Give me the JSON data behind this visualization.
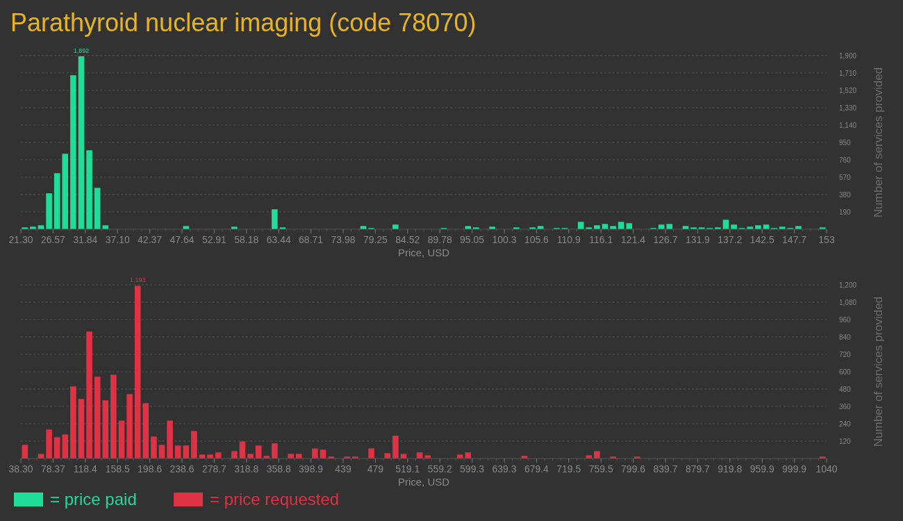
{
  "chart_data": [
    {
      "type": "histogram",
      "title": "Parathyroid nuclear imaging (code 78070)",
      "xlabel": "Price, USD",
      "ylabel": "Number of services provided",
      "grid": "y",
      "legend": "bottom left",
      "bins": [
        21.3,
        22.617,
        23.934,
        25.251,
        26.568,
        27.885,
        29.202,
        30.519,
        31.836,
        33.153,
        34.47,
        35.787,
        37.104,
        38.421,
        39.738,
        41.055,
        42.372,
        43.689,
        45.006,
        46.323,
        47.64,
        48.957,
        50.274,
        51.591,
        52.908,
        54.225,
        55.542,
        56.859,
        58.176,
        59.493,
        60.81,
        62.127,
        63.444,
        64.761,
        66.078,
        67.395,
        68.712,
        70.029,
        71.346,
        72.663,
        73.98,
        75.297,
        76.614,
        77.931,
        79.248,
        80.565,
        81.882,
        83.199,
        84.516,
        85.833,
        87.15,
        88.467,
        89.784,
        91.101,
        92.418,
        93.735,
        95.052,
        96.369,
        97.686,
        99.003,
        100.32,
        101.637,
        102.954,
        104.271,
        105.588,
        106.905,
        108.222,
        109.539,
        110.856,
        112.173,
        113.49,
        114.807,
        116.124,
        117.441,
        118.758,
        120.075,
        121.392,
        122.709,
        124.026,
        125.343,
        126.66,
        127.977,
        129.294,
        130.611,
        131.928,
        133.245,
        134.562,
        135.879,
        137.196,
        138.513,
        139.83,
        141.147,
        142.464,
        143.781,
        145.098,
        146.415,
        147.732,
        149.049,
        150.366,
        151.683,
        153
      ],
      "xticks": [
        {
          "value": 21.3,
          "label": "21.30"
        },
        {
          "value": 26.568,
          "label": "26.57"
        },
        {
          "value": 31.836,
          "label": "31.84"
        },
        {
          "value": 37.104,
          "label": "37.10"
        },
        {
          "value": 42.372,
          "label": "42.37"
        },
        47.64,
        {
          "value": 52.908,
          "label": "52.91"
        },
        {
          "value": 58.176,
          "label": "58.18"
        },
        {
          "value": 63.444,
          "label": "63.44"
        },
        {
          "value": 68.712,
          "label": "68.71"
        },
        73.98,
        {
          "value": 79.248,
          "label": "79.25"
        },
        {
          "value": 84.516,
          "label": "84.52"
        },
        {
          "value": 89.784,
          "label": "89.78"
        },
        {
          "value": 95.052,
          "label": "95.05"
        },
        {
          "value": 100.32,
          "label": "100.3"
        },
        {
          "value": 105.588,
          "label": "105.6"
        },
        {
          "value": 110.856,
          "label": "110.9"
        },
        {
          "value": 116.124,
          "label": "116.1"
        },
        {
          "value": 121.392,
          "label": "121.4"
        },
        {
          "value": 126.66,
          "label": "126.7"
        },
        {
          "value": 131.928,
          "label": "131.9"
        },
        {
          "value": 137.196,
          "label": "137.2"
        },
        {
          "value": 142.464,
          "label": "142.5"
        },
        {
          "value": 147.732,
          "label": "147.7"
        },
        153
      ],
      "xlim": [
        21.3,
        153
      ],
      "ylim": [
        0,
        1900
      ],
      "yticks": [
        190,
        380,
        570,
        760,
        950,
        {
          "value": 1140,
          "label": "1,140"
        },
        {
          "value": 1330,
          "label": "1,330"
        },
        {
          "value": 1520,
          "label": "1,520"
        },
        {
          "value": 1710,
          "label": "1,710"
        },
        {
          "value": 1900,
          "label": "1,900"
        }
      ],
      "series": [
        {
          "name": "= price paid",
          "color": "#20dc9a",
          "values": [
            20,
            28,
            43,
            393,
            613,
            826,
            1685,
            1892,
            864,
            453,
            43,
            0,
            0,
            0,
            0,
            0,
            0,
            0,
            0,
            0,
            35,
            0,
            0,
            0,
            0,
            0,
            28,
            0,
            0,
            0,
            0,
            218,
            20,
            0,
            0,
            0,
            0,
            0,
            0,
            0,
            0,
            0,
            35,
            13,
            0,
            0,
            51,
            0,
            0,
            0,
            0,
            0,
            13,
            0,
            0,
            35,
            20,
            0,
            28,
            0,
            0,
            20,
            0,
            20,
            35,
            0,
            13,
            13,
            0,
            81,
            20,
            43,
            58,
            35,
            81,
            66,
            0,
            0,
            13,
            51,
            58,
            0,
            35,
            20,
            20,
            13,
            20,
            104,
            51,
            13,
            28,
            43,
            51,
            13,
            28,
            13,
            35,
            0,
            0,
            20
          ],
          "value_labels": [
            null,
            null,
            null,
            null,
            null,
            null,
            null,
            "1,892",
            null,
            null,
            null,
            null,
            null,
            null,
            null,
            null,
            null,
            null,
            null,
            null,
            null,
            null,
            null,
            null,
            null,
            null,
            null,
            null,
            null,
            null,
            null,
            null,
            null,
            null,
            null,
            null,
            null,
            null,
            null,
            null,
            null,
            null,
            null,
            null,
            null,
            null,
            null,
            null,
            null,
            null,
            null,
            null,
            null,
            null,
            null,
            null,
            null,
            null,
            null,
            null,
            null,
            null,
            null,
            null,
            null,
            null,
            null,
            null,
            null,
            null,
            null,
            null,
            null,
            null,
            null,
            null,
            null,
            null,
            null,
            null,
            null,
            null,
            null,
            null,
            null,
            null,
            null,
            null,
            null,
            null,
            null,
            null,
            null,
            null,
            null,
            null,
            null,
            null,
            null,
            null
          ]
        }
      ]
    },
    {
      "type": "histogram",
      "xlabel": "Price, USD",
      "ylabel": "Number of services provided",
      "grid": "y",
      "legend": "bottom left",
      "bins": [
        38.3,
        48.317,
        58.334,
        68.351,
        78.368,
        88.385,
        98.402,
        108.419,
        118.436,
        128.453,
        138.47,
        148.487,
        158.504,
        168.521,
        178.538,
        188.555,
        198.572,
        208.589,
        218.606,
        228.623,
        238.64,
        248.657,
        258.674,
        268.691,
        278.708,
        288.725,
        298.742,
        308.759,
        318.776,
        328.793,
        338.81,
        348.827,
        358.844,
        368.861,
        378.878,
        388.895,
        398.912,
        408.929,
        418.946,
        428.963,
        438.98,
        448.997,
        459.014,
        469.031,
        479.048,
        489.065,
        499.082,
        509.099,
        519.116,
        529.133,
        539.15,
        549.167,
        559.184,
        569.201,
        579.218,
        589.235,
        599.252,
        609.269,
        619.286,
        629.303,
        639.32,
        649.337,
        659.354,
        669.371,
        679.388,
        689.405,
        699.422,
        709.439,
        719.456,
        729.473,
        739.49,
        749.507,
        759.524,
        769.541,
        779.558,
        789.575,
        799.592,
        809.609,
        819.626,
        829.643,
        839.66,
        849.677,
        859.694,
        869.711,
        879.728,
        889.745,
        899.762,
        909.779,
        919.796,
        929.813,
        939.83,
        949.847,
        959.864,
        969.881,
        979.898,
        989.915,
        999.932,
        1009.949,
        1019.966,
        1029.983,
        1040
      ],
      "xticks": [
        {
          "value": 38.3,
          "label": "38.30"
        },
        {
          "value": 78.368,
          "label": "78.37"
        },
        {
          "value": 118.436,
          "label": "118.4"
        },
        {
          "value": 158.504,
          "label": "158.5"
        },
        {
          "value": 198.572,
          "label": "198.6"
        },
        {
          "value": 238.64,
          "label": "238.6"
        },
        {
          "value": 278.708,
          "label": "278.7"
        },
        {
          "value": 318.776,
          "label": "318.8"
        },
        {
          "value": 358.844,
          "label": "358.8"
        },
        {
          "value": 398.912,
          "label": "398.9"
        },
        {
          "value": 438.98,
          "label": "439"
        },
        {
          "value": 479.048,
          "label": "479"
        },
        {
          "value": 519.116,
          "label": "519.1"
        },
        {
          "value": 559.184,
          "label": "559.2"
        },
        {
          "value": 599.252,
          "label": "599.3"
        },
        {
          "value": 639.32,
          "label": "639.3"
        },
        {
          "value": 679.388,
          "label": "679.4"
        },
        {
          "value": 719.456,
          "label": "719.5"
        },
        {
          "value": 759.524,
          "label": "759.5"
        },
        {
          "value": 799.592,
          "label": "799.6"
        },
        {
          "value": 839.66,
          "label": "839.7"
        },
        {
          "value": 879.728,
          "label": "879.7"
        },
        {
          "value": 919.796,
          "label": "919.8"
        },
        {
          "value": 959.864,
          "label": "959.9"
        },
        {
          "value": 999.932,
          "label": "999.9"
        },
        1040
      ],
      "xlim": [
        38.3,
        1040
      ],
      "ylim": [
        0,
        1200
      ],
      "yticks": [
        120,
        240,
        360,
        480,
        600,
        720,
        840,
        960,
        {
          "value": 1080,
          "label": "1,080"
        },
        {
          "value": 1200,
          "label": "1,200"
        }
      ],
      "series": [
        {
          "name": "= price requested",
          "color": "#dd3344",
          "values": [
            94,
            0,
            32,
            200,
            147,
            166,
            498,
            411,
            877,
            565,
            402,
            579,
            262,
            445,
            1193,
            382,
            152,
            94,
            262,
            90,
            90,
            190,
            27,
            27,
            42,
            0,
            51,
            118,
            32,
            90,
            18,
            104,
            0,
            32,
            32,
            0,
            70,
            61,
            13,
            0,
            13,
            13,
            0,
            70,
            0,
            37,
            157,
            32,
            0,
            42,
            22,
            0,
            0,
            0,
            27,
            42,
            0,
            0,
            0,
            0,
            0,
            0,
            18,
            0,
            0,
            0,
            0,
            0,
            0,
            0,
            22,
            51,
            0,
            13,
            0,
            0,
            13,
            0,
            0,
            0,
            0,
            0,
            0,
            0,
            0,
            0,
            0,
            0,
            0,
            0,
            0,
            0,
            0,
            0,
            0,
            0,
            0,
            0,
            0,
            13
          ],
          "value_labels": [
            null,
            null,
            null,
            null,
            null,
            null,
            null,
            null,
            null,
            null,
            null,
            null,
            null,
            null,
            "1,193",
            null,
            null,
            null,
            null,
            null,
            null,
            null,
            null,
            null,
            null,
            null,
            null,
            null,
            null,
            null,
            null,
            null,
            null,
            null,
            null,
            null,
            null,
            null,
            null,
            null,
            null,
            null,
            null,
            null,
            null,
            null,
            null,
            null,
            null,
            null,
            null,
            null,
            null,
            null,
            null,
            null,
            null,
            null,
            null,
            null,
            null,
            null,
            null,
            null,
            null,
            null,
            null,
            null,
            null,
            null,
            null,
            null,
            null,
            null,
            null,
            null,
            null,
            null,
            null,
            null,
            null,
            null,
            null,
            null,
            null,
            null,
            null,
            null,
            null,
            null,
            null,
            null,
            null,
            null,
            null,
            null,
            null,
            null,
            null,
            null
          ]
        }
      ]
    }
  ]
}
